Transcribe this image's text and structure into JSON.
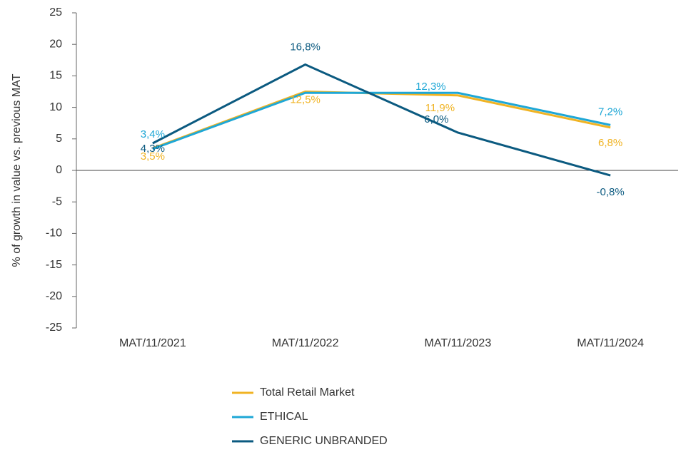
{
  "chart_data": {
    "type": "line",
    "y_label": "% of growth in value vs. previous MAT",
    "categories": [
      "MAT/11/2021",
      "MAT/11/2022",
      "MAT/11/2023",
      "MAT/11/2024"
    ],
    "series": [
      {
        "name": "Total Retail Market",
        "color": "#f0b323",
        "values": [
          3.5,
          12.5,
          11.9,
          6.8
        ],
        "value_labels": [
          "3,5%",
          "12,5%",
          "11,9%",
          "6,8%"
        ]
      },
      {
        "name": "ETHICAL",
        "color": "#1ea7d6",
        "values": [
          3.4,
          12.3,
          12.3,
          7.2
        ],
        "value_labels": [
          "3,4%",
          null,
          "12,3%",
          "7,2%"
        ]
      },
      {
        "name": "GENERIC UNBRANDED",
        "color": "#0b5a80",
        "values": [
          4.3,
          16.8,
          6.0,
          -0.8
        ],
        "value_labels": [
          "4,3%",
          "16,8%",
          "6,0%",
          "-0,8%"
        ]
      }
    ],
    "ylim": [
      -25,
      25
    ],
    "yticks": [
      -25,
      -20,
      -15,
      -10,
      -5,
      0,
      5,
      10,
      15,
      20,
      25
    ]
  }
}
